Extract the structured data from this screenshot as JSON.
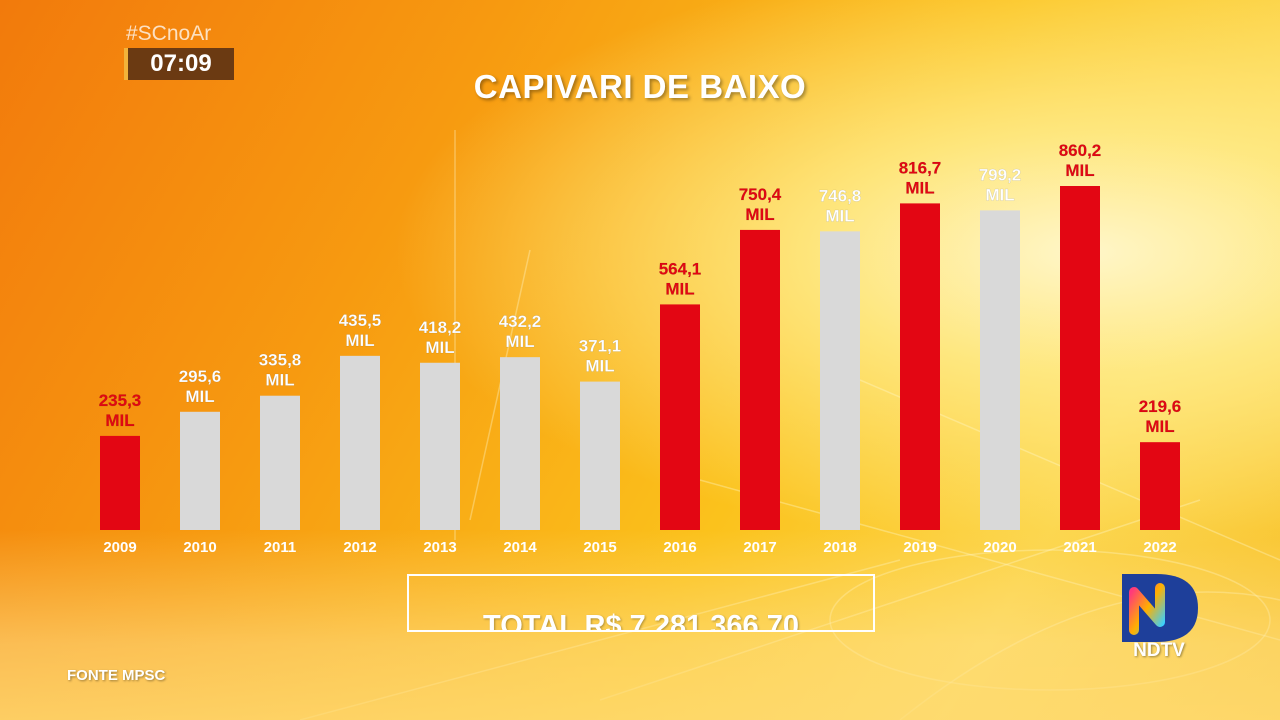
{
  "broadcast": {
    "hashtag": "#SCnoAr",
    "clock": "07:09",
    "channel_logo_text": "NDTV"
  },
  "colors": {
    "highlight_bar": "#e30613",
    "normal_bar": "#d9d9d9",
    "highlight_label": "#e30613",
    "normal_label": "#ffffff"
  },
  "chart_data": {
    "type": "bar",
    "title": "CAPIVARI DE BAIXO",
    "categories": [
      "2009",
      "2010",
      "2011",
      "2012",
      "2013",
      "2014",
      "2015",
      "2016",
      "2017",
      "2018",
      "2019",
      "2020",
      "2021",
      "2022"
    ],
    "values": [
      235.3,
      295.6,
      335.8,
      435.5,
      418.2,
      432.2,
      371.1,
      564.1,
      750.4,
      746.8,
      816.7,
      799.2,
      860.2,
      219.6
    ],
    "value_labels": [
      "235,3",
      "295,6",
      "335,8",
      "435,5",
      "418,2",
      "432,2",
      "371,1",
      "564,1",
      "750,4",
      "746,8",
      "816,7",
      "799,2",
      "860,2",
      "219,6"
    ],
    "unit_label": "MIL",
    "highlighted": [
      true,
      false,
      false,
      false,
      false,
      false,
      false,
      true,
      true,
      false,
      true,
      false,
      true,
      true
    ],
    "ylim": [
      0,
      900
    ],
    "grid": false,
    "legend": "none"
  },
  "total": {
    "text": "TOTAL R$ 7.281.366,70"
  },
  "source": "FONTE MPSC"
}
